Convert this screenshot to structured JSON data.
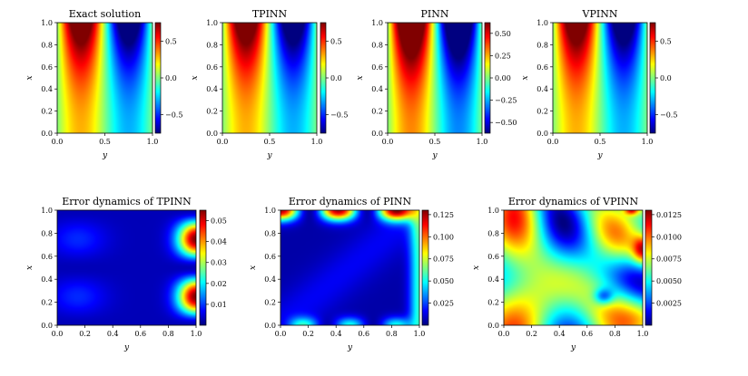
{
  "chart_data": [
    {
      "type": "heatmap",
      "title": "Exact solution",
      "xlabel": "y",
      "ylabel": "x",
      "xlim": [
        0,
        1
      ],
      "ylim": [
        0,
        1
      ],
      "xticks": [
        "0.0",
        "0.5",
        "1.0"
      ],
      "yticks": [
        "0.0",
        "0.2",
        "0.4",
        "0.6",
        "0.8",
        "1.0"
      ],
      "field": "u",
      "colorbar": {
        "range": [
          -0.75,
          0.75
        ],
        "ticks": [
          "0.5",
          "0.0",
          "−0.5"
        ],
        "tick_values": [
          0.5,
          0.0,
          -0.5
        ]
      }
    },
    {
      "type": "heatmap",
      "title": "TPINN",
      "xlabel": "y",
      "ylabel": "x",
      "xlim": [
        0,
        1
      ],
      "ylim": [
        0,
        1
      ],
      "xticks": [
        "0.0",
        "0.5",
        "1.0"
      ],
      "yticks": [
        "0.0",
        "0.2",
        "0.4",
        "0.6",
        "0.8",
        "1.0"
      ],
      "field": "u",
      "colorbar": {
        "range": [
          -0.75,
          0.75
        ],
        "ticks": [
          "0.5",
          "0.0",
          "−0.5"
        ],
        "tick_values": [
          0.5,
          0.0,
          -0.5
        ]
      }
    },
    {
      "type": "heatmap",
      "title": "PINN",
      "xlabel": "y",
      "ylabel": "x",
      "xlim": [
        0,
        1
      ],
      "ylim": [
        0,
        1
      ],
      "xticks": [
        "0.0",
        "0.5",
        "1.0"
      ],
      "yticks": [
        "0.0",
        "0.2",
        "0.4",
        "0.6",
        "0.8",
        "1.0"
      ],
      "field": "u",
      "colorbar": {
        "range": [
          -0.62,
          0.62
        ],
        "ticks": [
          "0.50",
          "0.25",
          "0.00",
          "−0.25",
          "−0.50"
        ],
        "tick_values": [
          0.5,
          0.25,
          0.0,
          -0.25,
          -0.5
        ]
      }
    },
    {
      "type": "heatmap",
      "title": "VPINN",
      "xlabel": "y",
      "ylabel": "x",
      "xlim": [
        0,
        1
      ],
      "ylim": [
        0,
        1
      ],
      "xticks": [
        "0.0",
        "0.5",
        "1.0"
      ],
      "yticks": [
        "0.0",
        "0.2",
        "0.4",
        "0.6",
        "0.8",
        "1.0"
      ],
      "field": "u",
      "colorbar": {
        "range": [
          -0.75,
          0.75
        ],
        "ticks": [
          "0.5",
          "0.0",
          "−0.5"
        ],
        "tick_values": [
          0.5,
          0.0,
          -0.5
        ]
      }
    },
    {
      "type": "heatmap",
      "title": "Error dynamics of TPINN",
      "xlabel": "y",
      "ylabel": "x",
      "xlim": [
        0,
        1
      ],
      "ylim": [
        0,
        1
      ],
      "xticks": [
        "0.0",
        "0.2",
        "0.4",
        "0.6",
        "0.8",
        "1.0"
      ],
      "yticks": [
        "0.0",
        "0.2",
        "0.4",
        "0.6",
        "0.8",
        "1.0"
      ],
      "field": "err_tpinn",
      "colorbar": {
        "range": [
          0.0,
          0.055
        ],
        "ticks": [
          "0.05",
          "0.04",
          "0.03",
          "0.02",
          "0.01"
        ],
        "tick_values": [
          0.05,
          0.04,
          0.03,
          0.02,
          0.01
        ]
      }
    },
    {
      "type": "heatmap",
      "title": "Error dynamics of PINN",
      "xlabel": "y",
      "ylabel": "x",
      "xlim": [
        0,
        1
      ],
      "ylim": [
        0,
        1
      ],
      "xticks": [
        "0.0",
        "0.2",
        "0.4",
        "0.6",
        "0.8",
        "1.0"
      ],
      "yticks": [
        "0.0",
        "0.2",
        "0.4",
        "0.6",
        "0.8",
        "1.0"
      ],
      "field": "err_pinn",
      "colorbar": {
        "range": [
          0.0,
          0.13
        ],
        "ticks": [
          "0.125",
          "0.100",
          "0.075",
          "0.050",
          "0.025"
        ],
        "tick_values": [
          0.125,
          0.1,
          0.075,
          0.05,
          0.025
        ]
      }
    },
    {
      "type": "heatmap",
      "title": "Error dynamics of VPINN",
      "xlabel": "y",
      "ylabel": "x",
      "xlim": [
        0,
        1
      ],
      "ylim": [
        0,
        1
      ],
      "xticks": [
        "0.0",
        "0.2",
        "0.4",
        "0.6",
        "0.8",
        "1.0"
      ],
      "yticks": [
        "0.0",
        "0.2",
        "0.4",
        "0.6",
        "0.8",
        "1.0"
      ],
      "field": "err_vpinn",
      "colorbar": {
        "range": [
          0.0,
          0.013
        ],
        "ticks": [
          "0.0125",
          "0.0100",
          "0.0075",
          "0.0050",
          "0.0025"
        ],
        "tick_values": [
          0.0125,
          0.01,
          0.0075,
          0.005,
          0.0025
        ]
      }
    }
  ],
  "colormap": "jet"
}
